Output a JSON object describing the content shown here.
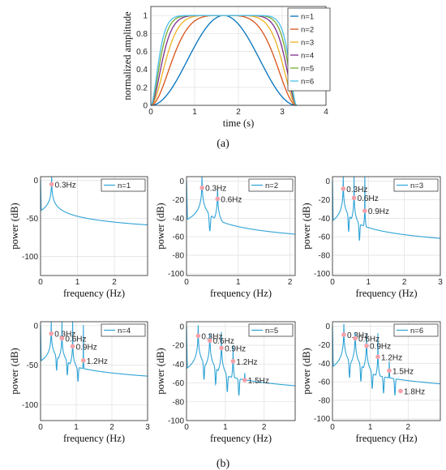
{
  "captions": {
    "a": "(a)",
    "b": "(b)"
  },
  "colors": {
    "n1": "#0072BD",
    "n2": "#D95319",
    "n3": "#EDB120",
    "n4": "#7E2F8E",
    "n5": "#77AC30",
    "n6": "#4DBEEE",
    "spectrum": "#2ea3d6",
    "marker": "#f4a0a8"
  },
  "chart_data": [
    {
      "id": "a",
      "type": "line",
      "title": "",
      "xlabel": "time (s)",
      "ylabel": "normalized amplitude",
      "xlim": [
        0,
        4
      ],
      "ylim": [
        0,
        1.1
      ],
      "xticks": [
        0,
        1,
        2,
        3,
        4
      ],
      "yticks": [
        0,
        0.2,
        0.4,
        0.6,
        0.8,
        1
      ],
      "grid": true,
      "legend": "outside-right",
      "series": [
        {
          "name": "n=1",
          "color": "#0072BD",
          "n": 1,
          "duration": 3.33
        },
        {
          "name": "n=2",
          "color": "#D95319",
          "n": 2,
          "duration": 3.33
        },
        {
          "name": "n=3",
          "color": "#EDB120",
          "n": 3,
          "duration": 3.33
        },
        {
          "name": "n=4",
          "color": "#7E2F8E",
          "n": 4,
          "duration": 3.33
        },
        {
          "name": "n=5",
          "color": "#77AC30",
          "n": 5,
          "duration": 3.33
        },
        {
          "name": "n=6",
          "color": "#4DBEEE",
          "n": 6,
          "duration": 3.33
        }
      ]
    },
    {
      "id": "b1",
      "type": "line",
      "legend_label": "n=1",
      "xlabel": "frequency  (Hz)",
      "ylabel": "power  (dB)",
      "xlim": [
        0,
        2.9
      ],
      "ylim": [
        -125,
        5
      ],
      "xticks": [
        0,
        1,
        2
      ],
      "yticks": [
        -100,
        -50,
        0
      ],
      "floor": -78,
      "tail_end": -121,
      "peaks": [
        {
          "f": 0.3,
          "db": -5,
          "label": "0.3Hz"
        }
      ]
    },
    {
      "id": "b2",
      "type": "line",
      "legend_label": "n=2",
      "xlabel": "frequency  (Hz)",
      "ylabel": "power  (dB)",
      "xlim": [
        0,
        2.1
      ],
      "ylim": [
        -102,
        5
      ],
      "xticks": [
        0,
        1,
        2
      ],
      "yticks": [
        -100,
        -80,
        -60,
        -40,
        -20,
        0
      ],
      "floor": -79,
      "tail_end": -102,
      "peaks": [
        {
          "f": 0.3,
          "db": -7,
          "label": "0.3Hz"
        },
        {
          "f": 0.6,
          "db": -19,
          "label": "0.6Hz"
        }
      ]
    },
    {
      "id": "b3",
      "type": "line",
      "legend_label": "n=3",
      "xlabel": "frequency  (Hz)",
      "ylabel": "power  (dB)",
      "xlim": [
        0,
        3
      ],
      "ylim": [
        -102,
        5
      ],
      "xticks": [
        0,
        1,
        2,
        3
      ],
      "yticks": [
        -100,
        -80,
        -60,
        -40,
        -20,
        0
      ],
      "floor": -87,
      "tail_end": -102,
      "peaks": [
        {
          "f": 0.3,
          "db": -8,
          "label": "0.3Hz"
        },
        {
          "f": 0.6,
          "db": -18,
          "label": "0.6Hz"
        },
        {
          "f": 0.9,
          "db": -32,
          "label": "0.9Hz"
        }
      ]
    },
    {
      "id": "b4",
      "type": "line",
      "legend_label": "n=4",
      "xlabel": "frequency  (Hz)",
      "ylabel": "power  (dB)",
      "xlim": [
        0,
        3
      ],
      "ylim": [
        -120,
        5
      ],
      "xticks": [
        0,
        1,
        2,
        3
      ],
      "yticks": [
        -100,
        -50,
        0
      ],
      "floor": -90,
      "tail_end": -112,
      "peaks": [
        {
          "f": 0.3,
          "db": -10,
          "label": "0.3Hz"
        },
        {
          "f": 0.6,
          "db": -16,
          "label": "0.6Hz"
        },
        {
          "f": 0.9,
          "db": -26,
          "label": "0.9Hz"
        },
        {
          "f": 1.2,
          "db": -44,
          "label": "1.2Hz"
        }
      ]
    },
    {
      "id": "b5",
      "type": "line",
      "legend_label": "n=5",
      "xlabel": "frequency  (Hz)",
      "ylabel": "power  (dB)",
      "xlim": [
        0,
        2.8
      ],
      "ylim": [
        -100,
        5
      ],
      "xticks": [
        0,
        1,
        2
      ],
      "yticks": [
        -100,
        -80,
        -60,
        -40,
        -20,
        0
      ],
      "floor": -78,
      "tail_end": -100,
      "peaks": [
        {
          "f": 0.3,
          "db": -10,
          "label": "0.3Hz"
        },
        {
          "f": 0.6,
          "db": -15,
          "label": "0.6Hz"
        },
        {
          "f": 0.9,
          "db": -23,
          "label": "0.9Hz"
        },
        {
          "f": 1.2,
          "db": -37,
          "label": "1.2Hz"
        },
        {
          "f": 1.5,
          "db": -57,
          "label": "1.5Hz"
        }
      ]
    },
    {
      "id": "b6",
      "type": "line",
      "legend_label": "n=6",
      "xlabel": "frequency  (Hz)",
      "ylabel": "power  (dB)",
      "xlim": [
        0,
        2.85
      ],
      "ylim": [
        -102,
        5
      ],
      "xticks": [
        0,
        1,
        2
      ],
      "yticks": [
        -100,
        -80,
        -60,
        -40,
        -20,
        0
      ],
      "floor": -80,
      "tail_end": -102,
      "peaks": [
        {
          "f": 0.3,
          "db": -9,
          "label": "0.3Hz"
        },
        {
          "f": 0.6,
          "db": -13,
          "label": "0.6Hz"
        },
        {
          "f": 0.9,
          "db": -21,
          "label": "0.9Hz"
        },
        {
          "f": 1.2,
          "db": -33,
          "label": "1.2Hz"
        },
        {
          "f": 1.5,
          "db": -48,
          "label": "1.5Hz"
        },
        {
          "f": 1.8,
          "db": -70,
          "label": "1.8Hz"
        }
      ]
    }
  ]
}
